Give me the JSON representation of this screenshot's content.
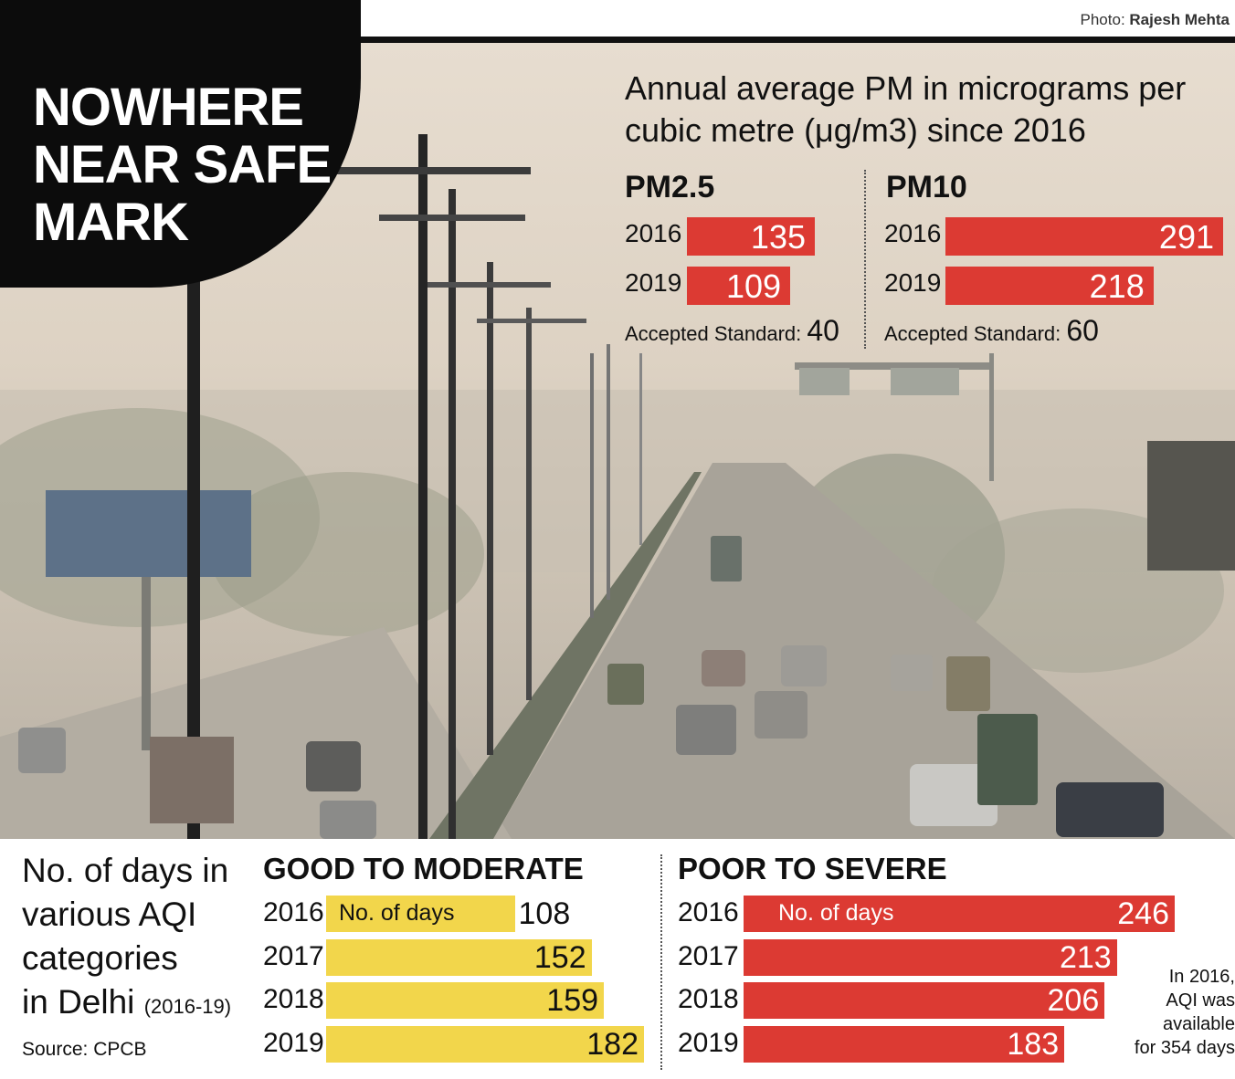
{
  "credit": {
    "prefix": "Photo:",
    "name": "Rajesh Mehta"
  },
  "headline": [
    "NOWHERE",
    "NEAR SAFE",
    "MARK"
  ],
  "colors": {
    "pm_bar": "#dc3a33",
    "good_bar": "#f2d64b",
    "poor_bar": "#dc3a33"
  },
  "pm": {
    "title_lines": [
      "Annual average PM in micrograms per",
      "cubic metre (μg/m3) since 2016"
    ],
    "standard_label": "Accepted Standard:"
  },
  "aqi": {
    "title_lines": [
      "No. of days in",
      "various AQI",
      "categories",
      "in Delhi"
    ],
    "title_range": "(2016-19)",
    "source": "Source: CPCB",
    "bar_inner_label": "No. of days",
    "note_lines": [
      "In 2016,",
      "AQI was",
      "available",
      "for 354 days"
    ]
  },
  "chart_data": [
    {
      "type": "bar",
      "title": "PM2.5",
      "categories": [
        "2016",
        "2019"
      ],
      "values": [
        135,
        109
      ],
      "standard": 40
    },
    {
      "type": "bar",
      "title": "PM10",
      "categories": [
        "2016",
        "2019"
      ],
      "values": [
        291,
        218
      ],
      "standard": 60
    },
    {
      "type": "bar",
      "title": "GOOD TO MODERATE",
      "categories": [
        "2016",
        "2017",
        "2018",
        "2019"
      ],
      "values": [
        108,
        152,
        159,
        182
      ]
    },
    {
      "type": "bar",
      "title": "POOR TO SEVERE",
      "categories": [
        "2016",
        "2017",
        "2018",
        "2019"
      ],
      "values": [
        246,
        213,
        206,
        183
      ]
    }
  ]
}
